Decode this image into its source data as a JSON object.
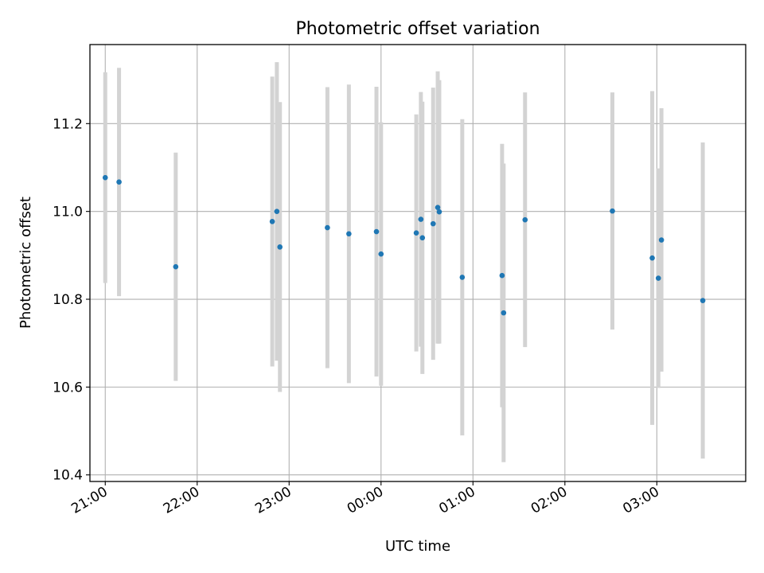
{
  "chart_data": {
    "type": "scatter",
    "title": "Photometric offset variation",
    "xlabel": "UTC time",
    "ylabel": "Photometric offset",
    "xlim": [
      "20:50",
      "03:58"
    ],
    "ylim": [
      10.385,
      11.38
    ],
    "xticks": [
      "21:00",
      "22:00",
      "23:00",
      "00:00",
      "01:00",
      "02:00",
      "03:00"
    ],
    "yticks": [
      10.4,
      10.6,
      10.8,
      11.0,
      11.2
    ],
    "ytick_labels": [
      "10.4",
      "10.6",
      "10.8",
      "11.0",
      "11.2"
    ],
    "grid": true,
    "marker_color": "#1f77b4",
    "errorbar_color": "#d3d3d3",
    "points": [
      {
        "x": "21:00",
        "y": 11.077,
        "err": 0.24
      },
      {
        "x": "21:09",
        "y": 11.067,
        "err": 0.26
      },
      {
        "x": "21:46",
        "y": 10.874,
        "err": 0.26
      },
      {
        "x": "22:49",
        "y": 10.977,
        "err": 0.33
      },
      {
        "x": "22:52",
        "y": 11.0,
        "err": 0.34
      },
      {
        "x": "22:54",
        "y": 10.919,
        "err": 0.33
      },
      {
        "x": "23:25",
        "y": 10.963,
        "err": 0.32
      },
      {
        "x": "23:39",
        "y": 10.949,
        "err": 0.34
      },
      {
        "x": "23:57",
        "y": 10.954,
        "err": 0.33
      },
      {
        "x": "00:00",
        "y": 10.903,
        "err": 0.3
      },
      {
        "x": "00:23",
        "y": 10.951,
        "err": 0.27
      },
      {
        "x": "00:26",
        "y": 10.982,
        "err": 0.29
      },
      {
        "x": "00:27",
        "y": 10.94,
        "err": 0.31
      },
      {
        "x": "00:34",
        "y": 10.972,
        "err": 0.31
      },
      {
        "x": "00:37",
        "y": 11.009,
        "err": 0.31
      },
      {
        "x": "00:38",
        "y": 10.999,
        "err": 0.3
      },
      {
        "x": "00:53",
        "y": 10.85,
        "err": 0.36
      },
      {
        "x": "01:19",
        "y": 10.854,
        "err": 0.3
      },
      {
        "x": "01:20",
        "y": 10.769,
        "err": 0.34
      },
      {
        "x": "01:34",
        "y": 10.981,
        "err": 0.29
      },
      {
        "x": "02:31",
        "y": 11.001,
        "err": 0.27
      },
      {
        "x": "02:57",
        "y": 10.894,
        "err": 0.38
      },
      {
        "x": "03:01",
        "y": 10.848,
        "err": 0.25
      },
      {
        "x": "03:03",
        "y": 10.935,
        "err": 0.3
      },
      {
        "x": "03:30",
        "y": 10.797,
        "err": 0.36
      }
    ]
  }
}
